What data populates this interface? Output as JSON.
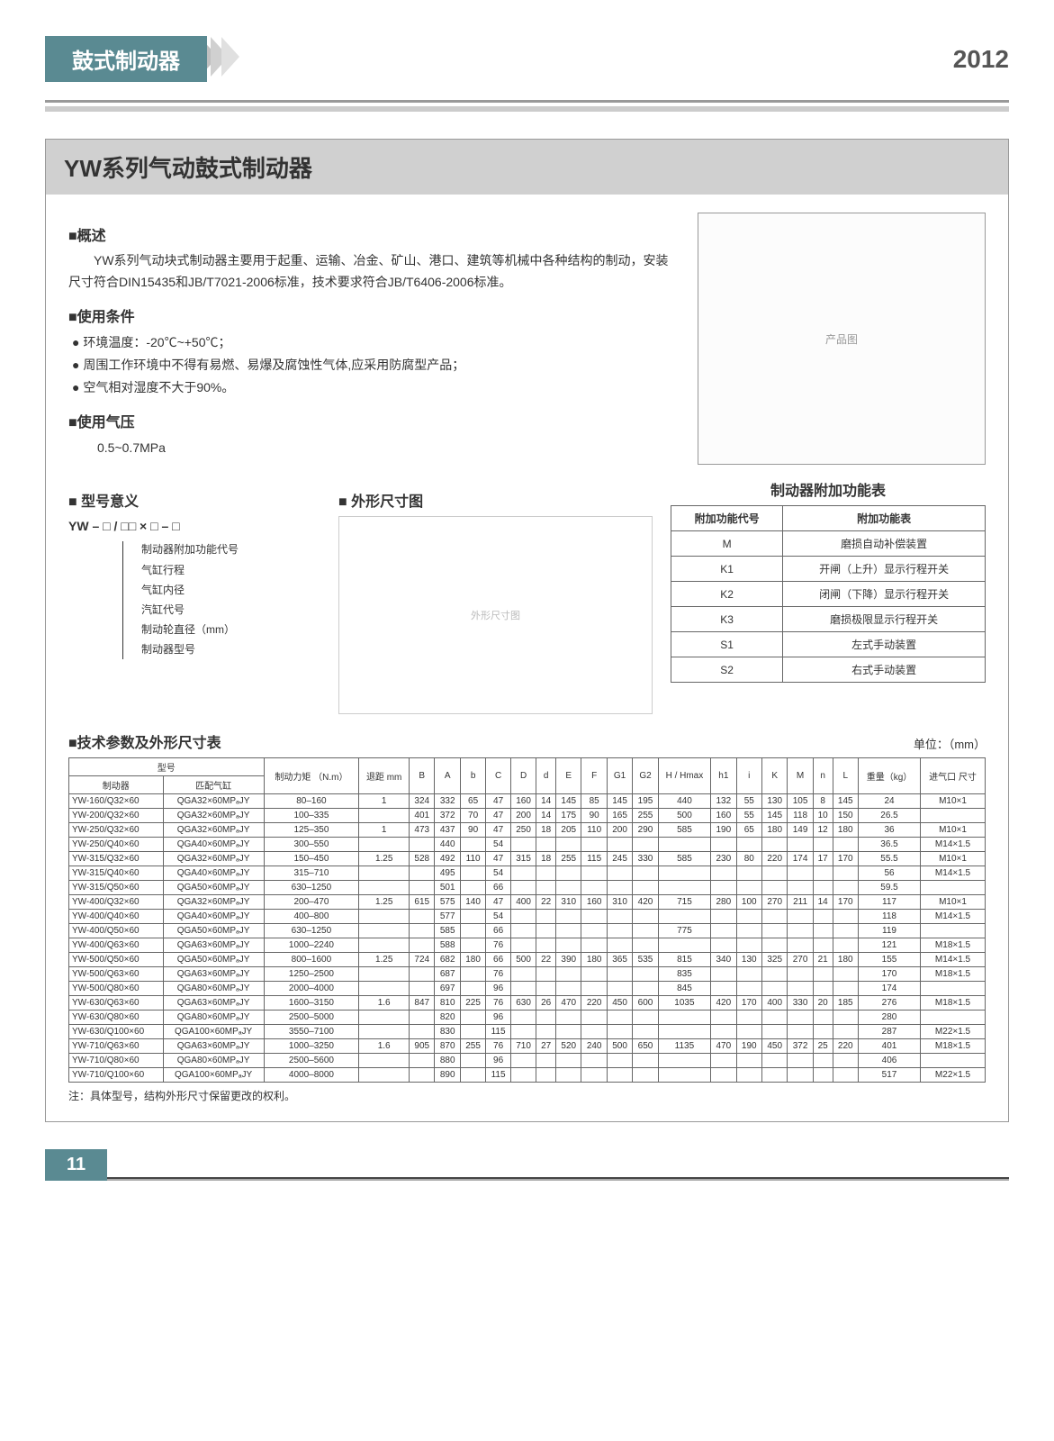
{
  "header": {
    "category": "鼓式制动器",
    "year": "2012"
  },
  "title": "YW系列气动鼓式制动器",
  "overview": {
    "heading": "■概述",
    "text": "YW系列气动块式制动器主要用于起重、运输、冶金、矿山、港口、建筑等机械中各种结构的制动，安装尺寸符合DIN15435和JB/T7021-2006标准，技术要求符合JB/T6406-2006标准。"
  },
  "conditions": {
    "heading": "■使用条件",
    "items": [
      "● 环境温度：-20℃~+50℃；",
      "● 周围工作环境中不得有易燃、易爆及腐蚀性气体,应采用防腐型产品；",
      "● 空气相对湿度不大于90%。"
    ]
  },
  "pressure": {
    "heading": "■使用气压",
    "value": "0.5~0.7MPa"
  },
  "model_meaning": {
    "heading": "■ 型号意义",
    "pattern": "YW – □ / □□ × □ – □",
    "labels": [
      "制动器附加功能代号",
      "气缸行程",
      "气缸内径",
      "汽缸代号",
      "制动轮直径（mm）",
      "制动器型号"
    ]
  },
  "dimension_heading": "■ 外形尺寸图",
  "func_table": {
    "title": "制动器附加功能表",
    "head": [
      "附加功能代号",
      "附加功能表"
    ],
    "rows": [
      [
        "M",
        "磨损自动补偿装置"
      ],
      [
        "K1",
        "开闸（上升）显示行程开关"
      ],
      [
        "K2",
        "闭闸（下降）显示行程开关"
      ],
      [
        "K3",
        "磨损极限显示行程开关"
      ],
      [
        "S1",
        "左式手动装置"
      ],
      [
        "S2",
        "右式手动装置"
      ]
    ]
  },
  "params": {
    "heading": "■技术参数及外形尺寸表",
    "unit": "单位：（mm）",
    "head_group": "型号",
    "head1": [
      "制动力矩 （N.m）",
      "退距 mm",
      "B",
      "A",
      "b",
      "C",
      "D",
      "d",
      "E",
      "F",
      "G1",
      "G2",
      "H / Hmax",
      "h1",
      "i",
      "K",
      "M",
      "n",
      "L",
      "重量（kg）",
      "进气口 尺寸"
    ],
    "sub_head": [
      "制动器",
      "匹配气缸"
    ],
    "rows": [
      [
        "YW-160/Q32×60",
        "QGA32×60MPₐJY",
        "80–160",
        "1",
        "324",
        "332",
        "65",
        "47",
        "160",
        "14",
        "145",
        "85",
        "145",
        "195",
        "440",
        "132",
        "55",
        "130",
        "105",
        "8",
        "145",
        "24",
        "M10×1"
      ],
      [
        "YW-200/Q32×60",
        "QGA32×60MPₐJY",
        "100–335",
        "",
        "401",
        "372",
        "70",
        "47",
        "200",
        "14",
        "175",
        "90",
        "165",
        "255",
        "500",
        "160",
        "55",
        "145",
        "118",
        "10",
        "150",
        "26.5",
        ""
      ],
      [
        "YW-250/Q32×60",
        "QGA32×60MPₐJY",
        "125–350",
        "1",
        "473",
        "437",
        "90",
        "47",
        "250",
        "18",
        "205",
        "110",
        "200",
        "290",
        "585",
        "190",
        "65",
        "180",
        "149",
        "12",
        "180",
        "36",
        "M10×1"
      ],
      [
        "YW-250/Q40×60",
        "QGA40×60MPₐJY",
        "300–550",
        "",
        "",
        "440",
        "",
        "54",
        "",
        "",
        "",
        "",
        "",
        "",
        "",
        "",
        "",
        "",
        "",
        "",
        "",
        "36.5",
        "M14×1.5"
      ],
      [
        "YW-315/Q32×60",
        "QGA32×60MPₐJY",
        "150–450",
        "1.25",
        "528",
        "492",
        "110",
        "47",
        "315",
        "18",
        "255",
        "115",
        "245",
        "330",
        "585",
        "230",
        "80",
        "220",
        "174",
        "17",
        "170",
        "55.5",
        "M10×1"
      ],
      [
        "YW-315/Q40×60",
        "QGA40×60MPₐJY",
        "315–710",
        "",
        "",
        "495",
        "",
        "54",
        "",
        "",
        "",
        "",
        "",
        "",
        "",
        "",
        "",
        "",
        "",
        "",
        "",
        "56",
        "M14×1.5"
      ],
      [
        "YW-315/Q50×60",
        "QGA50×60MPₐJY",
        "630–1250",
        "",
        "",
        "501",
        "",
        "66",
        "",
        "",
        "",
        "",
        "",
        "",
        "",
        "",
        "",
        "",
        "",
        "",
        "",
        "59.5",
        ""
      ],
      [
        "YW-400/Q32×60",
        "QGA32×60MPₐJY",
        "200–470",
        "1.25",
        "615",
        "575",
        "140",
        "47",
        "400",
        "22",
        "310",
        "160",
        "310",
        "420",
        "715",
        "280",
        "100",
        "270",
        "211",
        "14",
        "170",
        "117",
        "M10×1"
      ],
      [
        "YW-400/Q40×60",
        "QGA40×60MPₐJY",
        "400–800",
        "",
        "",
        "577",
        "",
        "54",
        "",
        "",
        "",
        "",
        "",
        "",
        "",
        "",
        "",
        "",
        "",
        "",
        "",
        "118",
        "M14×1.5"
      ],
      [
        "YW-400/Q50×60",
        "QGA50×60MPₐJY",
        "630–1250",
        "",
        "",
        "585",
        "",
        "66",
        "",
        "",
        "",
        "",
        "",
        "",
        "775",
        "",
        "",
        "",
        "",
        "",
        "",
        "119",
        ""
      ],
      [
        "YW-400/Q63×60",
        "QGA63×60MPₐJY",
        "1000–2240",
        "",
        "",
        "588",
        "",
        "76",
        "",
        "",
        "",
        "",
        "",
        "",
        "",
        "",
        "",
        "",
        "",
        "",
        "",
        "121",
        "M18×1.5"
      ],
      [
        "YW-500/Q50×60",
        "QGA50×60MPₐJY",
        "800–1600",
        "1.25",
        "724",
        "682",
        "180",
        "66",
        "500",
        "22",
        "390",
        "180",
        "365",
        "535",
        "815",
        "340",
        "130",
        "325",
        "270",
        "21",
        "180",
        "155",
        "M14×1.5"
      ],
      [
        "YW-500/Q63×60",
        "QGA63×60MPₐJY",
        "1250–2500",
        "",
        "",
        "687",
        "",
        "76",
        "",
        "",
        "",
        "",
        "",
        "",
        "835",
        "",
        "",
        "",
        "",
        "",
        "",
        "170",
        "M18×1.5"
      ],
      [
        "YW-500/Q80×60",
        "QGA80×60MPₐJY",
        "2000–4000",
        "",
        "",
        "697",
        "",
        "96",
        "",
        "",
        "",
        "",
        "",
        "",
        "845",
        "",
        "",
        "",
        "",
        "",
        "",
        "174",
        ""
      ],
      [
        "YW-630/Q63×60",
        "QGA63×60MPₐJY",
        "1600–3150",
        "1.6",
        "847",
        "810",
        "225",
        "76",
        "630",
        "26",
        "470",
        "220",
        "450",
        "600",
        "1035",
        "420",
        "170",
        "400",
        "330",
        "20",
        "185",
        "276",
        "M18×1.5"
      ],
      [
        "YW-630/Q80×60",
        "QGA80×60MPₐJY",
        "2500–5000",
        "",
        "",
        "820",
        "",
        "96",
        "",
        "",
        "",
        "",
        "",
        "",
        "",
        "",
        "",
        "",
        "",
        "",
        "",
        "280",
        ""
      ],
      [
        "YW-630/Q100×60",
        "QGA100×60MPₐJY",
        "3550–7100",
        "",
        "",
        "830",
        "",
        "115",
        "",
        "",
        "",
        "",
        "",
        "",
        "",
        "",
        "",
        "",
        "",
        "",
        "",
        "287",
        "M22×1.5"
      ],
      [
        "YW-710/Q63×60",
        "QGA63×60MPₐJY",
        "1000–3250",
        "1.6",
        "905",
        "870",
        "255",
        "76",
        "710",
        "27",
        "520",
        "240",
        "500",
        "650",
        "1135",
        "470",
        "190",
        "450",
        "372",
        "25",
        "220",
        "401",
        "M18×1.5"
      ],
      [
        "YW-710/Q80×60",
        "QGA80×60MPₐJY",
        "2500–5600",
        "",
        "",
        "880",
        "",
        "96",
        "",
        "",
        "",
        "",
        "",
        "",
        "",
        "",
        "",
        "",
        "",
        "",
        "",
        "406",
        ""
      ],
      [
        "YW-710/Q100×60",
        "QGA100×60MPₐJY",
        "4000–8000",
        "",
        "",
        "890",
        "",
        "115",
        "",
        "",
        "",
        "",
        "",
        "",
        "",
        "",
        "",
        "",
        "",
        "",
        "",
        "517",
        "M22×1.5"
      ]
    ],
    "note": "注：具体型号，结构外形尺寸保留更改的权利。"
  },
  "page_number": "11"
}
